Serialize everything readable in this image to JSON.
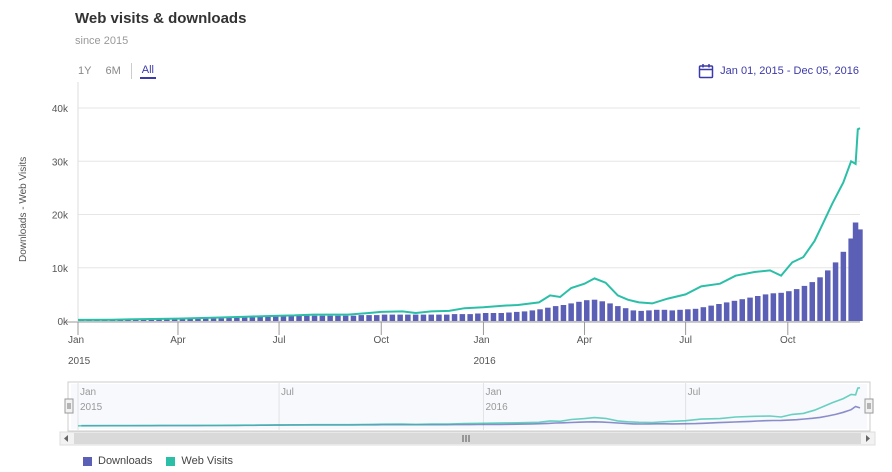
{
  "header": {
    "title": "Web visits & downloads",
    "subtitle": "since 2015"
  },
  "range_buttons": [
    "1Y",
    "6M",
    "All"
  ],
  "active_range": "All",
  "date_range": {
    "label": "Jan 01, 2015 - Dec 05, 2016",
    "icon": "calendar-icon"
  },
  "colors": {
    "downloads": "#5b5fb5",
    "web_visits": "#2bbfa8",
    "accent": "#3c3aa8"
  },
  "navigator": {
    "labels": [
      "Jan",
      "Jul",
      "Jan",
      "Jul"
    ],
    "year_labels": [
      "2015",
      "2016"
    ]
  },
  "legend": [
    {
      "name": "Downloads",
      "color": "#5b5fb5"
    },
    {
      "name": "Web Visits",
      "color": "#2bbfa8"
    }
  ],
  "chart_data": {
    "type": "bar",
    "ylabel": "Downloads - Web Visits",
    "ylim": [
      0,
      40000
    ],
    "yticks": [
      "0k",
      "10k",
      "20k",
      "30k",
      "40k"
    ],
    "xlim": [
      "2015-01-01",
      "2016-12-05"
    ],
    "xticks": [
      {
        "date": "2015-01-01",
        "label": "Jan",
        "year": "2015"
      },
      {
        "date": "2015-04-01",
        "label": "Apr"
      },
      {
        "date": "2015-07-01",
        "label": "Jul"
      },
      {
        "date": "2015-10-01",
        "label": "Oct"
      },
      {
        "date": "2016-01-01",
        "label": "Jan",
        "year": "2016"
      },
      {
        "date": "2016-04-01",
        "label": "Apr"
      },
      {
        "date": "2016-07-01",
        "label": "Jul"
      },
      {
        "date": "2016-10-01",
        "label": "Oct"
      }
    ],
    "grid": true,
    "legend_position": "bottom-left",
    "series": [
      {
        "name": "Downloads",
        "type": "column",
        "points": [
          [
            "2015-01-04",
            300
          ],
          [
            "2015-01-11",
            300
          ],
          [
            "2015-01-18",
            300
          ],
          [
            "2015-01-25",
            300
          ],
          [
            "2015-02-01",
            300
          ],
          [
            "2015-02-08",
            300
          ],
          [
            "2015-02-15",
            300
          ],
          [
            "2015-02-22",
            300
          ],
          [
            "2015-03-01",
            300
          ],
          [
            "2015-03-08",
            300
          ],
          [
            "2015-03-15",
            400
          ],
          [
            "2015-03-22",
            400
          ],
          [
            "2015-03-29",
            400
          ],
          [
            "2015-04-05",
            400
          ],
          [
            "2015-04-12",
            400
          ],
          [
            "2015-04-19",
            400
          ],
          [
            "2015-04-26",
            500
          ],
          [
            "2015-05-03",
            500
          ],
          [
            "2015-05-10",
            500
          ],
          [
            "2015-05-17",
            600
          ],
          [
            "2015-05-24",
            600
          ],
          [
            "2015-05-31",
            700
          ],
          [
            "2015-06-07",
            700
          ],
          [
            "2015-06-14",
            800
          ],
          [
            "2015-06-21",
            800
          ],
          [
            "2015-06-28",
            900
          ],
          [
            "2015-07-05",
            900
          ],
          [
            "2015-07-12",
            1000
          ],
          [
            "2015-07-19",
            1000
          ],
          [
            "2015-07-26",
            1000
          ],
          [
            "2015-08-02",
            1000
          ],
          [
            "2015-08-09",
            1000
          ],
          [
            "2015-08-16",
            1000
          ],
          [
            "2015-08-23",
            1000
          ],
          [
            "2015-08-30",
            1000
          ],
          [
            "2015-09-06",
            1000
          ],
          [
            "2015-09-13",
            1100
          ],
          [
            "2015-09-20",
            1100
          ],
          [
            "2015-09-27",
            1100
          ],
          [
            "2015-10-04",
            1200
          ],
          [
            "2015-10-11",
            1200
          ],
          [
            "2015-10-18",
            1200
          ],
          [
            "2015-10-25",
            1200
          ],
          [
            "2015-11-01",
            1200
          ],
          [
            "2015-11-08",
            1200
          ],
          [
            "2015-11-15",
            1200
          ],
          [
            "2015-11-22",
            1200
          ],
          [
            "2015-11-29",
            1200
          ],
          [
            "2015-12-06",
            1300
          ],
          [
            "2015-12-13",
            1300
          ],
          [
            "2015-12-20",
            1300
          ],
          [
            "2015-12-27",
            1400
          ],
          [
            "2016-01-03",
            1500
          ],
          [
            "2016-01-10",
            1500
          ],
          [
            "2016-01-17",
            1500
          ],
          [
            "2016-01-24",
            1600
          ],
          [
            "2016-01-31",
            1700
          ],
          [
            "2016-02-07",
            1800
          ],
          [
            "2016-02-14",
            2000
          ],
          [
            "2016-02-21",
            2200
          ],
          [
            "2016-02-28",
            2500
          ],
          [
            "2016-03-06",
            2800
          ],
          [
            "2016-03-13",
            3000
          ],
          [
            "2016-03-20",
            3300
          ],
          [
            "2016-03-27",
            3600
          ],
          [
            "2016-04-03",
            3900
          ],
          [
            "2016-04-10",
            4000
          ],
          [
            "2016-04-17",
            3700
          ],
          [
            "2016-04-24",
            3300
          ],
          [
            "2016-05-01",
            2800
          ],
          [
            "2016-05-08",
            2400
          ],
          [
            "2016-05-15",
            2000
          ],
          [
            "2016-05-22",
            1900
          ],
          [
            "2016-05-29",
            2000
          ],
          [
            "2016-06-05",
            2100
          ],
          [
            "2016-06-12",
            2100
          ],
          [
            "2016-06-19",
            2000
          ],
          [
            "2016-06-26",
            2100
          ],
          [
            "2016-07-03",
            2200
          ],
          [
            "2016-07-10",
            2300
          ],
          [
            "2016-07-17",
            2600
          ],
          [
            "2016-07-24",
            2900
          ],
          [
            "2016-07-31",
            3200
          ],
          [
            "2016-08-07",
            3500
          ],
          [
            "2016-08-14",
            3800
          ],
          [
            "2016-08-21",
            4100
          ],
          [
            "2016-08-28",
            4400
          ],
          [
            "2016-09-04",
            4700
          ],
          [
            "2016-09-11",
            5000
          ],
          [
            "2016-09-18",
            5200
          ],
          [
            "2016-09-25",
            5300
          ],
          [
            "2016-10-02",
            5600
          ],
          [
            "2016-10-09",
            6000
          ],
          [
            "2016-10-16",
            6600
          ],
          [
            "2016-10-23",
            7300
          ],
          [
            "2016-10-30",
            8200
          ],
          [
            "2016-11-06",
            9500
          ],
          [
            "2016-11-13",
            11000
          ],
          [
            "2016-11-20",
            13000
          ],
          [
            "2016-11-27",
            15500
          ],
          [
            "2016-12-01",
            18500
          ],
          [
            "2016-12-05",
            17200
          ]
        ]
      },
      {
        "name": "Web Visits",
        "type": "line",
        "points": [
          [
            "2015-01-01",
            200
          ],
          [
            "2015-02-01",
            250
          ],
          [
            "2015-03-01",
            350
          ],
          [
            "2015-04-01",
            450
          ],
          [
            "2015-05-01",
            600
          ],
          [
            "2015-06-01",
            800
          ],
          [
            "2015-07-01",
            1000
          ],
          [
            "2015-07-15",
            1050
          ],
          [
            "2015-08-01",
            1200
          ],
          [
            "2015-09-01",
            1200
          ],
          [
            "2015-09-20",
            1500
          ],
          [
            "2015-10-01",
            1700
          ],
          [
            "2015-10-20",
            1800
          ],
          [
            "2015-11-01",
            1500
          ],
          [
            "2015-11-15",
            1800
          ],
          [
            "2015-12-01",
            1900
          ],
          [
            "2015-12-15",
            2400
          ],
          [
            "2016-01-01",
            2600
          ],
          [
            "2016-01-20",
            2900
          ],
          [
            "2016-02-01",
            3000
          ],
          [
            "2016-02-20",
            3500
          ],
          [
            "2016-03-01",
            4800
          ],
          [
            "2016-03-10",
            4500
          ],
          [
            "2016-03-20",
            6200
          ],
          [
            "2016-04-01",
            7000
          ],
          [
            "2016-04-10",
            8000
          ],
          [
            "2016-04-20",
            7200
          ],
          [
            "2016-05-01",
            4800
          ],
          [
            "2016-05-10",
            4000
          ],
          [
            "2016-05-20",
            3500
          ],
          [
            "2016-06-01",
            3300
          ],
          [
            "2016-06-15",
            4200
          ],
          [
            "2016-07-01",
            5000
          ],
          [
            "2016-07-15",
            6500
          ],
          [
            "2016-08-01",
            7000
          ],
          [
            "2016-08-15",
            8500
          ],
          [
            "2016-09-01",
            9200
          ],
          [
            "2016-09-15",
            9500
          ],
          [
            "2016-09-25",
            8500
          ],
          [
            "2016-10-05",
            11000
          ],
          [
            "2016-10-15",
            12000
          ],
          [
            "2016-10-25",
            15000
          ],
          [
            "2016-11-01",
            18000
          ],
          [
            "2016-11-10",
            22000
          ],
          [
            "2016-11-20",
            26000
          ],
          [
            "2016-11-27",
            30000
          ],
          [
            "2016-12-01",
            29500
          ],
          [
            "2016-12-03",
            36000
          ],
          [
            "2016-12-05",
            36200
          ]
        ]
      }
    ]
  }
}
